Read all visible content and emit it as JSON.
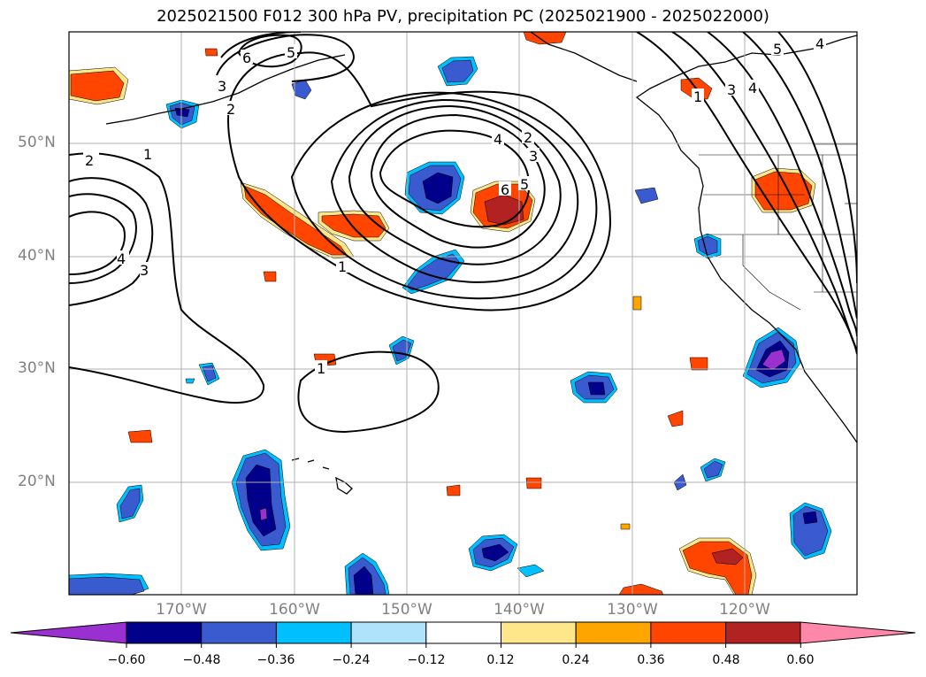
{
  "title": "2025021500 F012 300 hPa PV, precipitation PC (2025021900 - 2025022000)",
  "lat_labels": [
    "50°N",
    "40°N",
    "30°N",
    "20°N"
  ],
  "lon_labels": [
    "170°W",
    "160°W",
    "150°W",
    "140°W",
    "130°W",
    "120°W"
  ],
  "colorbar": {
    "ticks": [
      "−0.60",
      "−0.48",
      "−0.36",
      "−0.24",
      "−0.12",
      "0.12",
      "0.24",
      "0.36",
      "0.48",
      "0.60"
    ],
    "colors": [
      "#9b30d0",
      "#00008b",
      "#3a5bd0",
      "#00bfff",
      "#afe3fb",
      "#ffffff",
      "#fee68a",
      "#ffa500",
      "#ff4500",
      "#b22222",
      "#ff88aa"
    ]
  },
  "contour_labels": [
    "1",
    "2",
    "3",
    "4",
    "5",
    "6"
  ],
  "palette": {
    "purple": "#9b30d0",
    "navy": "#00008b",
    "blue": "#3a5bd0",
    "cyan": "#00bfff",
    "lightblue": "#afe3fb",
    "yellow": "#fee68a",
    "orange": "#ffa500",
    "redorange": "#ff4500",
    "firebrick": "#b22222",
    "pink": "#ff88aa"
  }
}
